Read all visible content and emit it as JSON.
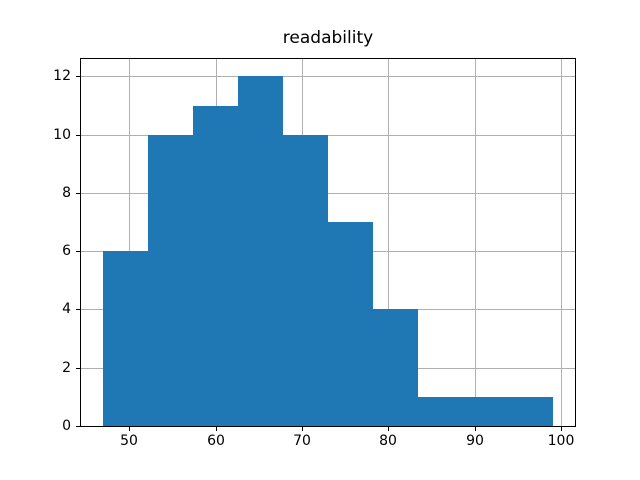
{
  "chart_data": {
    "type": "bar",
    "subtype": "histogram",
    "title": "readability",
    "xlabel": "",
    "ylabel": "",
    "bin_edges": [
      47.0,
      52.2,
      57.4,
      62.6,
      67.8,
      73.0,
      78.2,
      83.4,
      88.6,
      93.8,
      99.0
    ],
    "counts": [
      6,
      10,
      11,
      12,
      10,
      7,
      4,
      1,
      1,
      1
    ],
    "x_ticks": [
      50,
      60,
      70,
      80,
      90,
      100
    ],
    "y_ticks": [
      0,
      2,
      4,
      6,
      8,
      10,
      12
    ],
    "xlim": [
      44.4,
      101.6
    ],
    "ylim": [
      0,
      12.6
    ],
    "grid": true,
    "legend": null,
    "colors": {
      "bar": "#1f77b4",
      "grid": "#b0b0b0",
      "spine": "#000000",
      "text": "#000000",
      "background": "#ffffff"
    }
  }
}
